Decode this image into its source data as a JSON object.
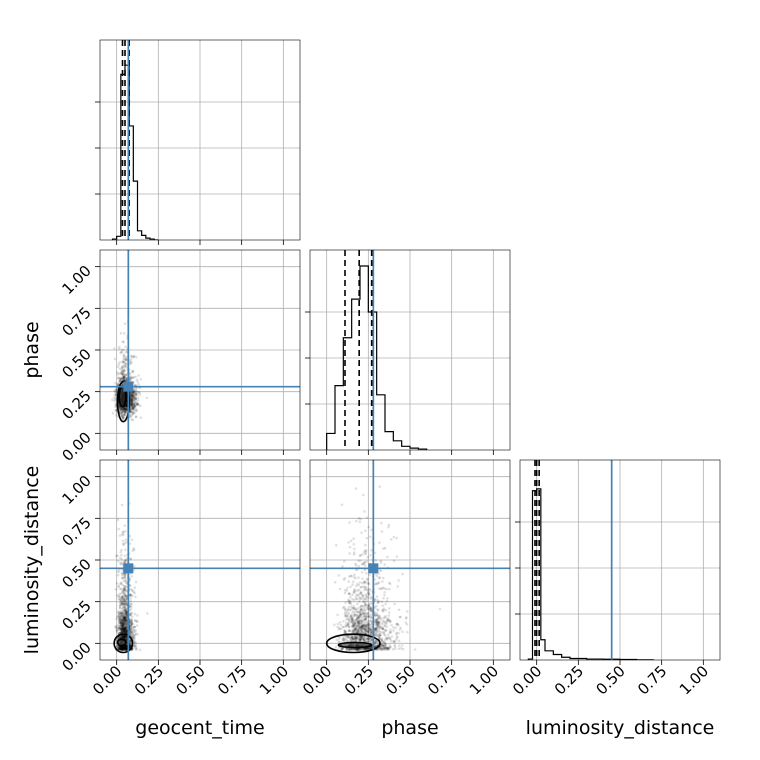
{
  "chart_data": {
    "type": "corner",
    "parameters": [
      "geocent_time",
      "phase",
      "luminosity_distance"
    ],
    "axis_range": [
      -0.1,
      1.1
    ],
    "ticks": [
      0.0,
      0.25,
      0.5,
      0.75,
      1.0
    ],
    "tick_labels": [
      "0.00",
      "0.25",
      "0.50",
      "0.75",
      "1.00"
    ],
    "grid": true,
    "truth_color": "#4682b4",
    "truths": {
      "geocent_time": 0.07,
      "phase": 0.28,
      "luminosity_distance": 0.45
    },
    "histograms": {
      "geocent_time": {
        "bin_edges": [
          -0.025,
          0.0,
          0.025,
          0.05,
          0.075,
          0.1,
          0.125,
          0.15,
          0.175,
          0.2,
          0.225,
          0.25
        ],
        "counts": [
          0.005,
          0.02,
          0.9,
          0.95,
          0.62,
          0.32,
          0.05,
          0.025,
          0.01,
          0.005,
          0.0
        ],
        "quantiles": [
          0.035,
          0.05,
          0.075
        ]
      },
      "phase": {
        "bin_edges": [
          0.0,
          0.05,
          0.1,
          0.15,
          0.2,
          0.25,
          0.3,
          0.35,
          0.4,
          0.45,
          0.5,
          0.55,
          0.6
        ],
        "counts": [
          0.09,
          0.35,
          0.61,
          0.82,
          1.0,
          0.75,
          0.3,
          0.1,
          0.05,
          0.02,
          0.01,
          0.005
        ],
        "quantiles": [
          0.11,
          0.195,
          0.27
        ]
      },
      "luminosity_distance": {
        "bin_edges": [
          -0.05,
          -0.025,
          0.0,
          0.025,
          0.05,
          0.1,
          0.15,
          0.2,
          0.3,
          0.4,
          0.5,
          0.6,
          0.7
        ],
        "counts": [
          0.005,
          0.92,
          0.93,
          0.11,
          0.05,
          0.03,
          0.015,
          0.008,
          0.005,
          0.004,
          0.003,
          0.001
        ],
        "quantiles": [
          -0.01,
          0.0,
          0.015
        ]
      }
    },
    "scatter_2d": [
      {
        "x": "geocent_time",
        "y": "phase",
        "center": [
          0.04,
          0.2
        ],
        "spread": [
          0.035,
          0.09
        ],
        "contours": [
          {
            "center": [
              0.035,
              0.22
            ],
            "radii": [
              0.02,
              0.06
            ]
          },
          {
            "center": [
              0.04,
              0.19
            ],
            "radii": [
              0.035,
              0.12
            ]
          }
        ]
      },
      {
        "x": "geocent_time",
        "y": "luminosity_distance",
        "center": [
          0.04,
          0.03
        ],
        "spread": [
          0.03,
          0.18
        ],
        "contours": [
          {
            "center": [
              0.03,
              0.005
            ],
            "radii": [
              0.025,
              0.02
            ]
          },
          {
            "center": [
              0.04,
              0.0
            ],
            "radii": [
              0.055,
              0.055
            ]
          }
        ]
      },
      {
        "x": "phase",
        "y": "luminosity_distance",
        "center": [
          0.2,
          0.04
        ],
        "spread": [
          0.1,
          0.2
        ],
        "contours": [
          {
            "center": [
              0.17,
              -0.01
            ],
            "radii": [
              0.1,
              0.015
            ]
          },
          {
            "center": [
              0.16,
              0.0
            ],
            "radii": [
              0.16,
              0.055
            ]
          }
        ]
      }
    ]
  }
}
